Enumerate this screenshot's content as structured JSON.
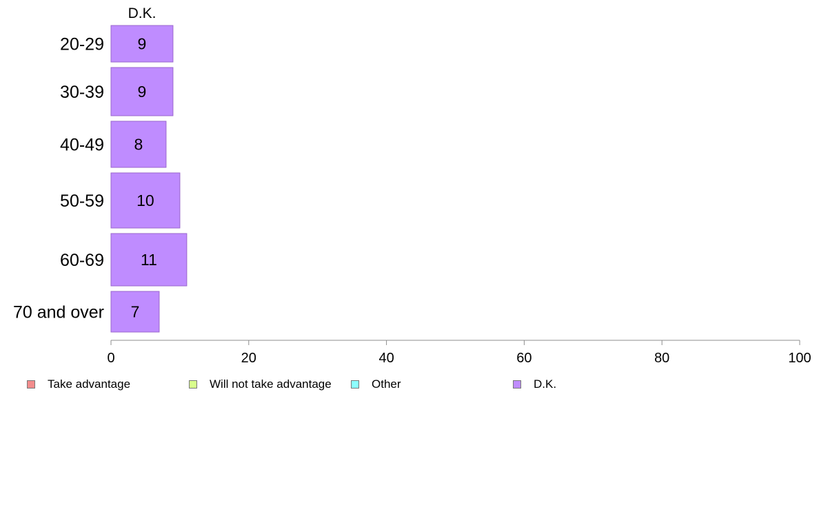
{
  "chart_data": {
    "type": "bar",
    "orientation": "horizontal",
    "stacked": true,
    "categories": [
      "20-29",
      "30-39",
      "40-49",
      "50-59",
      "60-69",
      "70 and over"
    ],
    "series": [
      {
        "name": "D.K.",
        "color": "#bf8cff",
        "values": [
          9,
          9,
          8,
          10,
          11,
          7
        ]
      }
    ],
    "column_header": "D.K.",
    "xticks": [
      "0",
      "20",
      "40",
      "60",
      "80",
      "100"
    ],
    "xlim": [
      0,
      100
    ],
    "grid": false,
    "legend_position": "bottom",
    "legend": [
      {
        "label": "Take advantage",
        "color": "#f28c8c"
      },
      {
        "label": "Will not take advantage",
        "color": "#d9ff8c"
      },
      {
        "label": "Other",
        "color": "#8cffff"
      },
      {
        "label": "D.K.",
        "color": "#bf8cff"
      }
    ]
  }
}
